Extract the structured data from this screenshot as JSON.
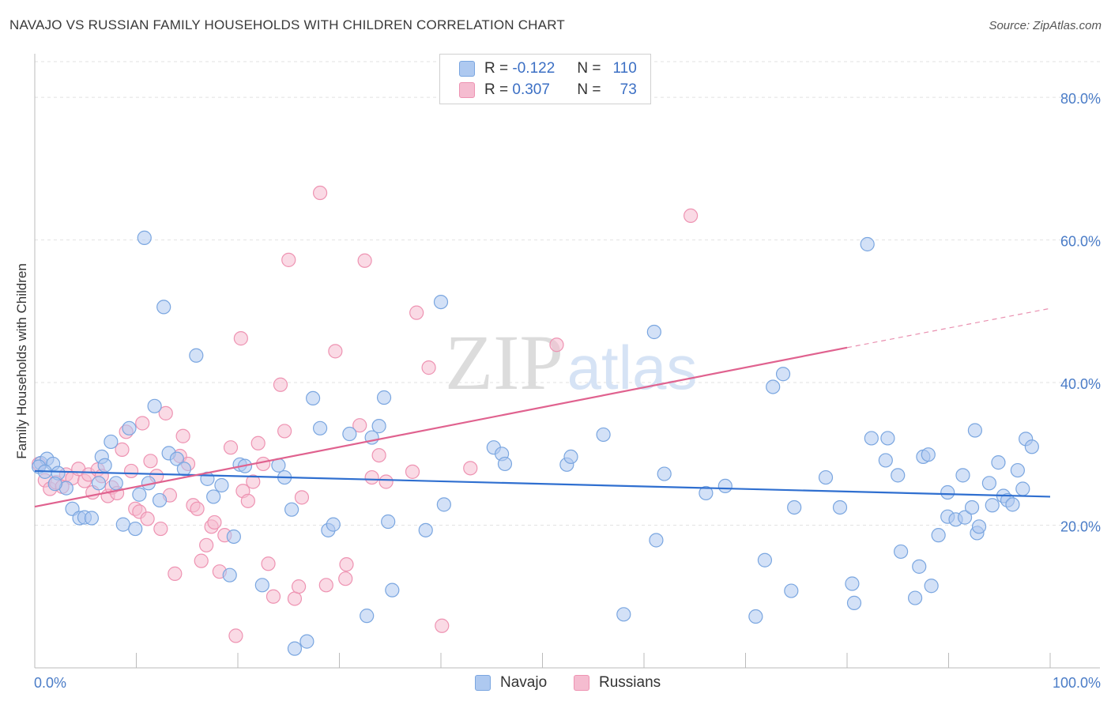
{
  "title": "NAVAJO VS RUSSIAN FAMILY HOUSEHOLDS WITH CHILDREN CORRELATION CHART",
  "source": "Source: ZipAtlas.com",
  "watermark": {
    "zip": "ZIP",
    "atlas": "atlas"
  },
  "legend": {
    "navajo": {
      "r_label": "R =",
      "r_value": "-0.122",
      "n_label": "N =",
      "n_value": "110"
    },
    "russians": {
      "r_label": "R =",
      "r_value": "0.307",
      "n_label": "N =",
      "n_value": "73"
    }
  },
  "colors": {
    "navajo_fill": "#aec9f0",
    "navajo_stroke": "#7aa6e0",
    "navajo_line": "#2f6fd0",
    "russians_fill": "#f5bcd0",
    "russians_stroke": "#ee93b2",
    "russians_line": "#e0628f",
    "grid": "#e2e2e2",
    "tick_text": "#4a7cc7"
  },
  "chart_data": {
    "type": "scatter",
    "title": "NAVAJO VS RUSSIAN FAMILY HOUSEHOLDS WITH CHILDREN CORRELATION CHART",
    "xlabel": "",
    "ylabel": "Family Households with Children",
    "xlim": [
      0,
      100
    ],
    "ylim": [
      0,
      85
    ],
    "x_tick_labels": [
      "0.0%",
      "100.0%"
    ],
    "y_ticks": [
      20,
      40,
      60,
      80
    ],
    "y_tick_labels": [
      "20.0%",
      "40.0%",
      "60.0%",
      "80.0%"
    ],
    "grid": true,
    "legend_labels": [
      "Navajo",
      "Russians"
    ],
    "series": [
      {
        "name": "Navajo",
        "trend": {
          "x0": 0,
          "y0": 27.6,
          "x1": 100,
          "y1": 24.0
        },
        "points": [
          [
            0.6,
            28.7
          ],
          [
            1.2,
            29.3
          ],
          [
            1.8,
            28.6
          ],
          [
            2.3,
            27.3
          ],
          [
            3.1,
            25.2
          ],
          [
            3.7,
            22.3
          ],
          [
            4.4,
            21.0
          ],
          [
            4.9,
            21.1
          ],
          [
            5.6,
            21.0
          ],
          [
            6.3,
            25.9
          ],
          [
            6.6,
            29.6
          ],
          [
            6.9,
            28.4
          ],
          [
            7.5,
            31.7
          ],
          [
            8.0,
            25.9
          ],
          [
            8.7,
            20.1
          ],
          [
            9.3,
            33.6
          ],
          [
            9.9,
            19.5
          ],
          [
            10.3,
            24.3
          ],
          [
            10.8,
            60.3
          ],
          [
            11.2,
            25.9
          ],
          [
            11.8,
            36.7
          ],
          [
            12.3,
            23.5
          ],
          [
            12.7,
            50.6
          ],
          [
            13.2,
            30.1
          ],
          [
            14.0,
            29.3
          ],
          [
            14.7,
            27.9
          ],
          [
            15.9,
            43.8
          ],
          [
            17.0,
            26.5
          ],
          [
            17.6,
            24.0
          ],
          [
            18.4,
            25.6
          ],
          [
            19.2,
            13.0
          ],
          [
            19.6,
            18.4
          ],
          [
            20.2,
            28.5
          ],
          [
            20.7,
            28.3
          ],
          [
            22.4,
            11.6
          ],
          [
            24.0,
            28.4
          ],
          [
            24.6,
            26.7
          ],
          [
            25.3,
            22.2
          ],
          [
            25.6,
            2.7
          ],
          [
            26.8,
            3.7
          ],
          [
            27.4,
            37.8
          ],
          [
            28.1,
            33.6
          ],
          [
            28.9,
            19.3
          ],
          [
            29.4,
            20.1
          ],
          [
            31.0,
            32.8
          ],
          [
            32.7,
            7.3
          ],
          [
            33.2,
            32.3
          ],
          [
            33.9,
            33.9
          ],
          [
            34.4,
            37.9
          ],
          [
            34.8,
            20.5
          ],
          [
            35.2,
            10.9
          ],
          [
            38.5,
            19.3
          ],
          [
            40.0,
            51.3
          ],
          [
            40.3,
            22.9
          ],
          [
            45.2,
            30.9
          ],
          [
            46.0,
            30.0
          ],
          [
            46.3,
            28.6
          ],
          [
            52.4,
            28.5
          ],
          [
            52.8,
            29.6
          ],
          [
            56.0,
            32.7
          ],
          [
            58.0,
            7.5
          ],
          [
            61.0,
            47.1
          ],
          [
            61.2,
            17.9
          ],
          [
            62.0,
            27.2
          ],
          [
            66.1,
            24.5
          ],
          [
            68.0,
            25.5
          ],
          [
            71.0,
            7.2
          ],
          [
            71.9,
            15.1
          ],
          [
            72.7,
            39.4
          ],
          [
            73.7,
            41.2
          ],
          [
            74.5,
            10.8
          ],
          [
            74.8,
            22.5
          ],
          [
            77.9,
            26.7
          ],
          [
            79.3,
            22.5
          ],
          [
            80.5,
            11.8
          ],
          [
            80.7,
            9.1
          ],
          [
            82.0,
            59.4
          ],
          [
            82.4,
            32.2
          ],
          [
            83.8,
            29.1
          ],
          [
            84.0,
            32.2
          ],
          [
            85.0,
            27.0
          ],
          [
            85.3,
            16.3
          ],
          [
            86.7,
            9.8
          ],
          [
            87.1,
            14.2
          ],
          [
            87.5,
            29.6
          ],
          [
            88.0,
            29.9
          ],
          [
            88.3,
            11.5
          ],
          [
            89.0,
            18.6
          ],
          [
            89.9,
            21.2
          ],
          [
            89.9,
            24.6
          ],
          [
            90.7,
            20.8
          ],
          [
            91.4,
            27.0
          ],
          [
            91.6,
            21.1
          ],
          [
            92.3,
            22.5
          ],
          [
            92.6,
            33.3
          ],
          [
            92.8,
            18.9
          ],
          [
            93.0,
            19.8
          ],
          [
            94.0,
            25.9
          ],
          [
            94.3,
            22.8
          ],
          [
            94.9,
            28.8
          ],
          [
            95.4,
            24.1
          ],
          [
            95.8,
            23.5
          ],
          [
            96.3,
            22.9
          ],
          [
            96.8,
            27.7
          ],
          [
            97.3,
            25.1
          ],
          [
            97.6,
            32.1
          ],
          [
            98.2,
            31.0
          ],
          [
            0.4,
            28.2
          ],
          [
            1.0,
            27.5
          ],
          [
            2.0,
            25.8
          ]
        ]
      },
      {
        "name": "Russians",
        "trend": {
          "x0": 0,
          "y0": 22.6,
          "x1": 80,
          "y1": 44.9,
          "dash_to_x": 100,
          "dash_to_y": 50.4
        },
        "points": [
          [
            0.4,
            28.6
          ],
          [
            1.0,
            26.3
          ],
          [
            1.5,
            25.1
          ],
          [
            2.1,
            26.0
          ],
          [
            2.7,
            25.4
          ],
          [
            3.1,
            27.1
          ],
          [
            3.7,
            26.6
          ],
          [
            4.3,
            27.9
          ],
          [
            4.9,
            26.2
          ],
          [
            5.3,
            27.1
          ],
          [
            5.7,
            24.6
          ],
          [
            6.2,
            27.8
          ],
          [
            6.6,
            26.9
          ],
          [
            7.2,
            24.1
          ],
          [
            7.6,
            25.3
          ],
          [
            8.1,
            24.5
          ],
          [
            8.6,
            30.6
          ],
          [
            9.0,
            33.1
          ],
          [
            9.5,
            27.6
          ],
          [
            9.9,
            22.3
          ],
          [
            10.3,
            21.9
          ],
          [
            10.6,
            34.3
          ],
          [
            11.1,
            20.9
          ],
          [
            11.4,
            29.0
          ],
          [
            12.0,
            26.9
          ],
          [
            12.4,
            19.5
          ],
          [
            12.9,
            35.7
          ],
          [
            13.3,
            24.2
          ],
          [
            13.8,
            13.2
          ],
          [
            14.3,
            29.7
          ],
          [
            14.6,
            32.5
          ],
          [
            15.1,
            28.6
          ],
          [
            15.6,
            22.8
          ],
          [
            16.0,
            22.3
          ],
          [
            16.4,
            15.0
          ],
          [
            16.9,
            17.2
          ],
          [
            17.4,
            19.8
          ],
          [
            17.7,
            20.4
          ],
          [
            18.2,
            13.5
          ],
          [
            18.7,
            18.6
          ],
          [
            19.3,
            30.9
          ],
          [
            19.8,
            4.5
          ],
          [
            20.3,
            46.2
          ],
          [
            20.5,
            24.8
          ],
          [
            21.0,
            23.4
          ],
          [
            21.5,
            26.1
          ],
          [
            22.0,
            31.5
          ],
          [
            22.5,
            28.6
          ],
          [
            23.0,
            14.6
          ],
          [
            23.5,
            10.0
          ],
          [
            24.2,
            39.7
          ],
          [
            24.6,
            33.2
          ],
          [
            25.0,
            57.2
          ],
          [
            25.6,
            9.7
          ],
          [
            26.0,
            11.4
          ],
          [
            26.3,
            23.9
          ],
          [
            28.1,
            66.6
          ],
          [
            28.7,
            11.6
          ],
          [
            29.6,
            44.4
          ],
          [
            30.7,
            14.5
          ],
          [
            30.6,
            12.5
          ],
          [
            32.0,
            34.0
          ],
          [
            32.5,
            57.1
          ],
          [
            33.2,
            26.7
          ],
          [
            33.9,
            29.8
          ],
          [
            34.6,
            26.1
          ],
          [
            37.2,
            27.5
          ],
          [
            37.6,
            49.8
          ],
          [
            38.8,
            42.1
          ],
          [
            40.1,
            5.9
          ],
          [
            42.9,
            28.0
          ],
          [
            51.4,
            45.3
          ],
          [
            64.6,
            63.4
          ]
        ]
      }
    ]
  }
}
